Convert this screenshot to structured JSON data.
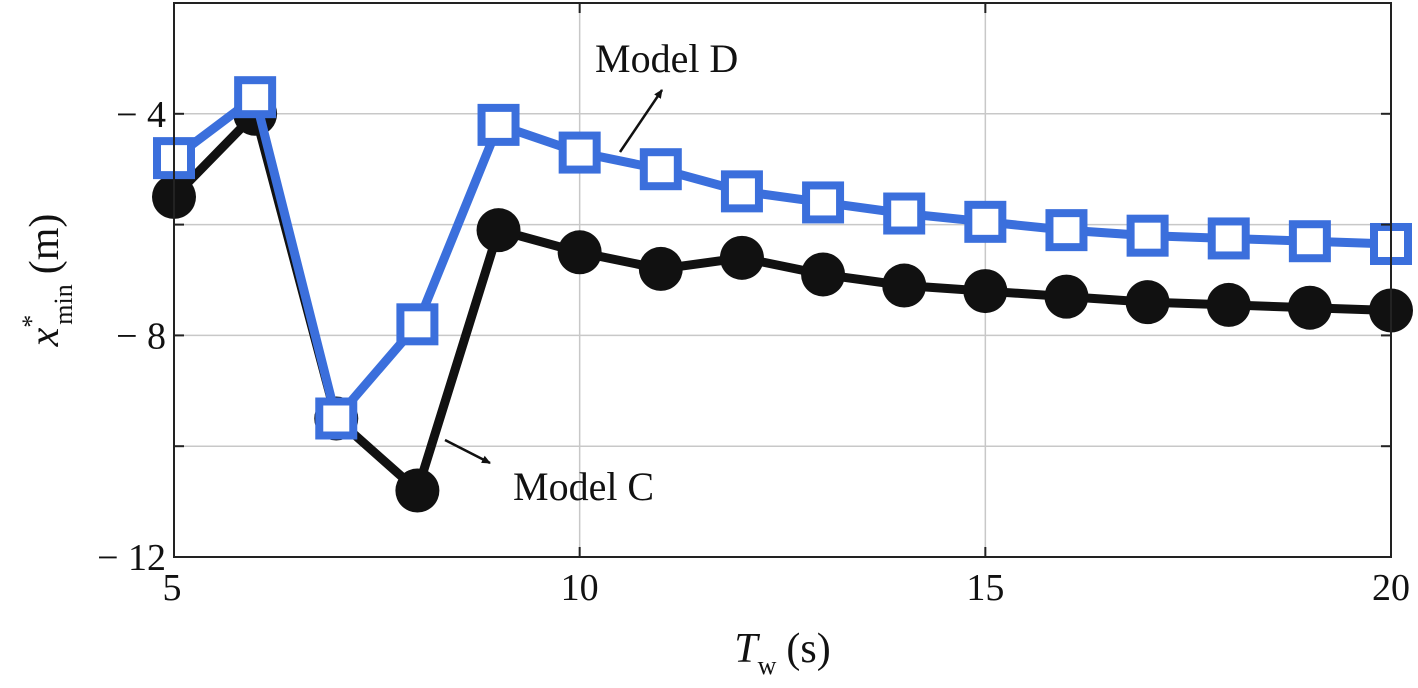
{
  "chart_data": {
    "type": "line",
    "x": [
      5,
      6,
      7,
      8,
      9,
      10,
      11,
      12,
      13,
      14,
      15,
      16,
      17,
      18,
      19,
      20
    ],
    "xlim": [
      5,
      20
    ],
    "ylim": [
      -12,
      -2
    ],
    "xticks": [
      5,
      10,
      15,
      20
    ],
    "xtick_labels": [
      "5",
      "10",
      "15",
      "20"
    ],
    "yticks": [
      -12,
      -10,
      -8,
      -6,
      -4
    ],
    "ytick_labels": [
      "− 12",
      "",
      "− 8",
      "",
      "− 4"
    ],
    "xlabel": {
      "main": "T",
      "sub": "w",
      "unit": "(s)"
    },
    "ylabel": {
      "main": "x",
      "sup": "*",
      "sub": "min",
      "unit": "(m)"
    },
    "grid": true,
    "series": [
      {
        "name": "Model C",
        "color": "#111111",
        "marker": "filled-circle",
        "values": [
          -5.5,
          -4.0,
          -9.5,
          -10.8,
          -6.1,
          -6.5,
          -6.8,
          -6.6,
          -6.9,
          -7.1,
          -7.2,
          -7.3,
          -7.4,
          -7.45,
          -7.5,
          -7.55
        ]
      },
      {
        "name": "Model D",
        "color": "#3b6fdc",
        "marker": "open-square",
        "values": [
          -4.8,
          -3.7,
          -9.5,
          -7.8,
          -4.2,
          -4.7,
          -5.0,
          -5.4,
          -5.6,
          -5.8,
          -5.95,
          -6.1,
          -6.2,
          -6.25,
          -6.3,
          -6.35
        ]
      }
    ],
    "annotations": [
      {
        "text": "Model D",
        "target_series": "Model D"
      },
      {
        "text": "Model C",
        "target_series": "Model C"
      }
    ]
  }
}
